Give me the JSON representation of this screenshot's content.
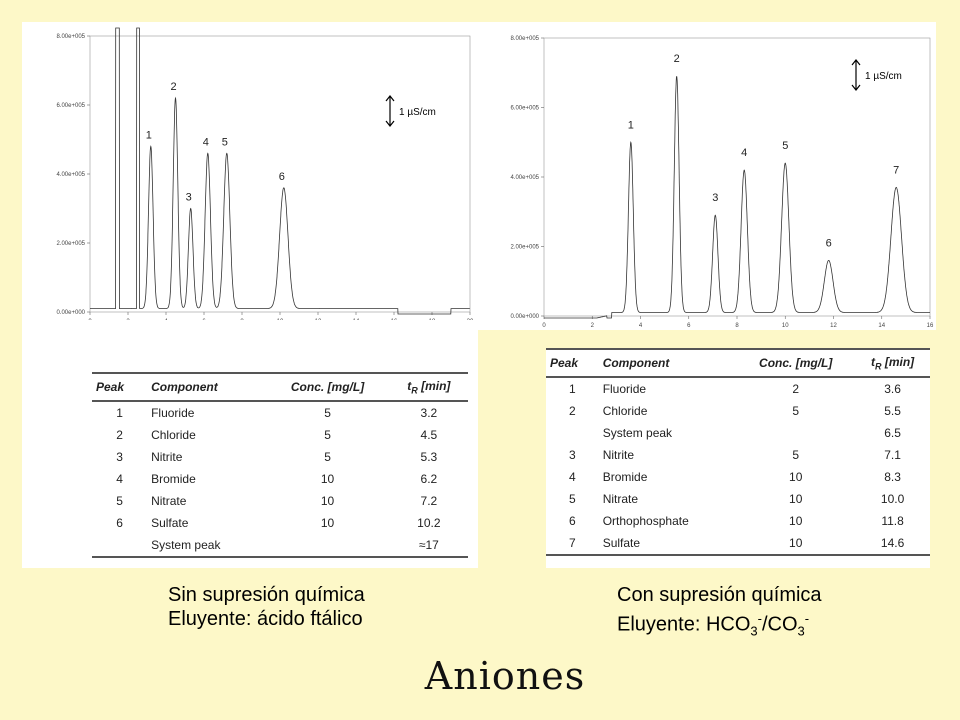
{
  "title": "Aniones",
  "captions": {
    "left": {
      "line1": "Sin supresión química",
      "line2_prefix": "Eluyente: ácido ftálico"
    },
    "right": {
      "line1": "Con supresión química",
      "line2_prefix": "Eluyente: HCO",
      "sub1": "3",
      "sup1": "-",
      "mid": "/CO",
      "sub2": "3",
      "sup2": "-"
    }
  },
  "chart_data": [
    {
      "type": "line",
      "name": "",
      "xlim": [
        0,
        20
      ],
      "ylim": [
        0,
        8
      ],
      "x_ticks": [
        0,
        2,
        4,
        6,
        8,
        10,
        12,
        14,
        16,
        18,
        20
      ],
      "y_ticks": [
        "0.00e+000",
        "2.00e+005",
        "4.00e+005",
        "6.00e+005",
        "8.00e+005"
      ],
      "scale_bar": "1 µS/cm",
      "peaks": [
        {
          "label": "1",
          "t": 3.2,
          "height": 4.7,
          "width": 0.12
        },
        {
          "label": "2",
          "t": 4.5,
          "height": 6.1,
          "width": 0.12
        },
        {
          "label": "3",
          "t": 5.3,
          "height": 2.9,
          "width": 0.12
        },
        {
          "label": "4",
          "t": 6.2,
          "height": 4.5,
          "width": 0.14
        },
        {
          "label": "5",
          "t": 7.2,
          "height": 4.5,
          "width": 0.16
        },
        {
          "label": "6",
          "t": 10.2,
          "height": 3.5,
          "width": 0.22
        }
      ],
      "table": {
        "headers": [
          "Peak",
          "Component",
          "Conc. [mg/L]",
          "tR [min]"
        ],
        "rows": [
          [
            "1",
            "Fluoride",
            "5",
            "3.2"
          ],
          [
            "2",
            "Chloride",
            "5",
            "4.5"
          ],
          [
            "3",
            "Nitrite",
            "5",
            "5.3"
          ],
          [
            "4",
            "Bromide",
            "10",
            "6.2"
          ],
          [
            "5",
            "Nitrate",
            "10",
            "7.2"
          ],
          [
            "6",
            "Sulfate",
            "10",
            "10.2"
          ],
          [
            "",
            "System peak",
            "",
            "≈17"
          ]
        ]
      }
    },
    {
      "type": "line",
      "name": "",
      "xlim": [
        0,
        16
      ],
      "ylim": [
        0,
        8
      ],
      "x_ticks": [
        0,
        2,
        4,
        6,
        8,
        10,
        12,
        14,
        16
      ],
      "y_ticks": [
        "0.00e+000",
        "2.00e+005",
        "4.00e+005",
        "6.00e+005",
        "8.00e+005"
      ],
      "scale_bar": "1 µS/cm",
      "peaks": [
        {
          "label": "1",
          "t": 3.6,
          "height": 4.9,
          "width": 0.1
        },
        {
          "label": "2",
          "t": 5.5,
          "height": 6.8,
          "width": 0.1
        },
        {
          "label": "3",
          "t": 7.1,
          "height": 2.8,
          "width": 0.11
        },
        {
          "label": "4",
          "t": 8.3,
          "height": 4.1,
          "width": 0.13
        },
        {
          "label": "5",
          "t": 10.0,
          "height": 4.3,
          "width": 0.15
        },
        {
          "label": "6",
          "t": 11.8,
          "height": 1.5,
          "width": 0.18
        },
        {
          "label": "7",
          "t": 14.6,
          "height": 3.6,
          "width": 0.22
        }
      ],
      "table": {
        "headers": [
          "Peak",
          "Component",
          "Conc. [mg/L]",
          "tR [min]"
        ],
        "rows": [
          [
            "1",
            "Fluoride",
            "2",
            "3.6"
          ],
          [
            "2",
            "Chloride",
            "5",
            "5.5"
          ],
          [
            "",
            "System peak",
            "",
            "6.5"
          ],
          [
            "3",
            "Nitrite",
            "5",
            "7.1"
          ],
          [
            "4",
            "Bromide",
            "10",
            "8.3"
          ],
          [
            "5",
            "Nitrate",
            "10",
            "10.0"
          ],
          [
            "6",
            "Orthophosphate",
            "10",
            "11.8"
          ],
          [
            "7",
            "Sulfate",
            "10",
            "14.6"
          ]
        ]
      }
    }
  ]
}
